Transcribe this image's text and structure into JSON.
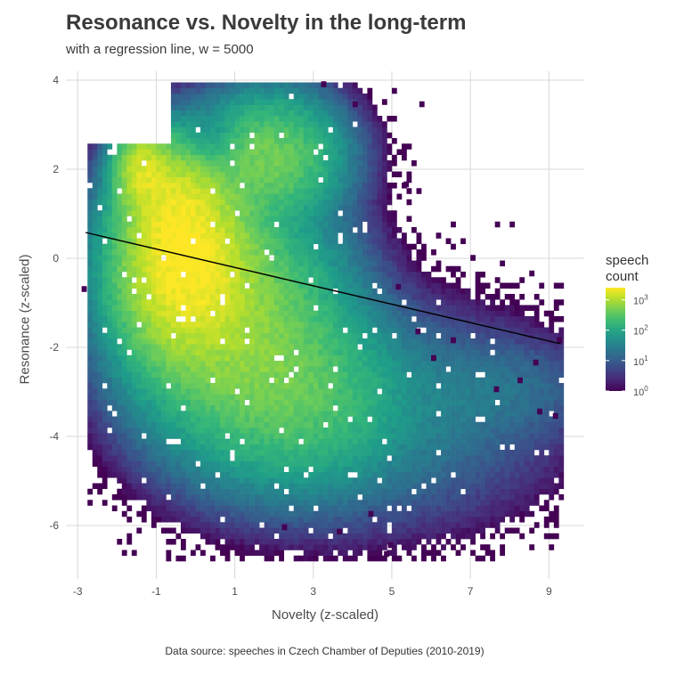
{
  "title": "Resonance vs. Novelty in the long-term",
  "subtitle": "with a regression line, w = 5000",
  "caption": "Data source: speeches in Czech Chamber of Deputies (2010-2019)",
  "chart_data": {
    "type": "heatmap",
    "title": "Resonance vs. Novelty in the long-term",
    "subtitle": "with a regression line, w = 5000",
    "xlabel": "Novelty (z-scaled)",
    "ylabel": "Resonance (z-scaled)",
    "xlim": [
      -3.3,
      9.9
    ],
    "ylim": [
      -7.2,
      4.2
    ],
    "x_ticks": [
      -3,
      -1,
      1,
      3,
      5,
      7,
      9
    ],
    "y_ticks": [
      4,
      2,
      0,
      -2,
      -4,
      -6
    ],
    "grid": true,
    "color_scale": "viridis, log10",
    "legend": {
      "title_line1": "speech",
      "title_line2": "count",
      "position": "right",
      "breaks": [
        {
          "label": "10",
          "exp": "3",
          "value": 1000
        },
        {
          "label": "10",
          "exp": "2",
          "value": 100
        },
        {
          "label": "10",
          "exp": "1",
          "value": 10
        },
        {
          "label": "10",
          "exp": "0",
          "value": 1
        }
      ],
      "max_count": 2500
    },
    "regression_line": {
      "x": [
        -2.8,
        9.3
      ],
      "y": [
        0.58,
        -1.92
      ]
    },
    "density": {
      "peak_count": 2500,
      "bin_size": 0.125,
      "core": {
        "x": -0.3,
        "y": -0.2
      },
      "arm": {
        "x": -1.4,
        "y": 1.9
      },
      "right_lobe": {
        "x": 1.8,
        "y": 2.2
      },
      "tail": {
        "x": 4.5,
        "y": -3.6
      }
    },
    "outliers": [
      {
        "x": 3.2,
        "y": 3.85
      },
      {
        "x": 4.0,
        "y": 3.4
      },
      {
        "x": 5.7,
        "y": 3.4
      },
      {
        "x": 5.3,
        "y": 1.6
      },
      {
        "x": 8.5,
        "y": -0.4
      },
      {
        "x": 9.0,
        "y": -1.3
      },
      {
        "x": 9.2,
        "y": -1.9
      },
      {
        "x": 9.1,
        "y": -3.6
      },
      {
        "x": 8.7,
        "y": -3.5
      },
      {
        "x": 8.6,
        "y": -2.4
      },
      {
        "x": 8.2,
        "y": -2.8
      },
      {
        "x": 7.6,
        "y": -3.0
      },
      {
        "x": 5.1,
        "y": -0.7
      },
      {
        "x": -2.9,
        "y": -0.75
      },
      {
        "x": 5.6,
        "y": -1.7
      },
      {
        "x": 6.5,
        "y": -1.9
      },
      {
        "x": 6.0,
        "y": -2.3
      },
      {
        "x": 2.2,
        "y": -6.1
      },
      {
        "x": 4.9,
        "y": -6.5
      },
      {
        "x": 4.8,
        "y": -6.7
      },
      {
        "x": 3.6,
        "y": -6.2
      },
      {
        "x": 4.4,
        "y": -5.8
      }
    ]
  }
}
